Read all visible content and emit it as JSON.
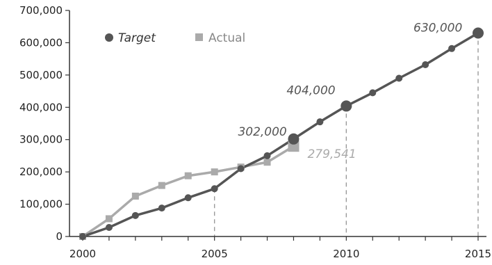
{
  "chart_data": {
    "type": "line",
    "title": "",
    "xlabel": "",
    "ylabel": "",
    "xlim": [
      2000,
      2015
    ],
    "ylim": [
      0,
      700000
    ],
    "x_ticks": [
      2000,
      2005,
      2010,
      2015
    ],
    "x_tick_labels": [
      "2000",
      "2005",
      "2010",
      "2015"
    ],
    "y_ticks": [
      0,
      100000,
      200000,
      300000,
      400000,
      500000,
      600000,
      700000
    ],
    "y_tick_labels": [
      "0",
      "100,000",
      "200,000",
      "300,000",
      "400,000",
      "500,000",
      "600,000",
      "700,000"
    ],
    "grid": false,
    "legend_position": "top-left",
    "series": [
      {
        "name": "Target",
        "color": "#555555",
        "marker": "circle",
        "x": [
          2000,
          2001,
          2002,
          2003,
          2004,
          2005,
          2006,
          2007,
          2008,
          2009,
          2010,
          2011,
          2012,
          2013,
          2014,
          2015
        ],
        "y": [
          0,
          28000,
          65000,
          88000,
          120000,
          148000,
          210000,
          250000,
          302000,
          355000,
          404000,
          445000,
          490000,
          532000,
          582000,
          630000
        ]
      },
      {
        "name": "Actual",
        "color": "#aaaaaa",
        "marker": "square",
        "x": [
          2000,
          2001,
          2002,
          2003,
          2004,
          2005,
          2006,
          2007,
          2008
        ],
        "y": [
          0,
          55000,
          125000,
          158000,
          188000,
          200000,
          215000,
          230000,
          279541
        ]
      }
    ],
    "annotations": [
      {
        "label": "302,000",
        "x": 2008,
        "y": 302000,
        "series": "Target"
      },
      {
        "label": "404,000",
        "x": 2010,
        "y": 404000,
        "series": "Target"
      },
      {
        "label": "630,000",
        "x": 2015,
        "y": 630000,
        "series": "Target"
      },
      {
        "label": "279,541",
        "x": 2008,
        "y": 279541,
        "series": "Actual"
      }
    ],
    "reference_lines": [
      {
        "x": 2005,
        "y": 148000
      },
      {
        "x": 2010,
        "y": 404000
      },
      {
        "x": 2015,
        "y": 630000
      }
    ]
  }
}
